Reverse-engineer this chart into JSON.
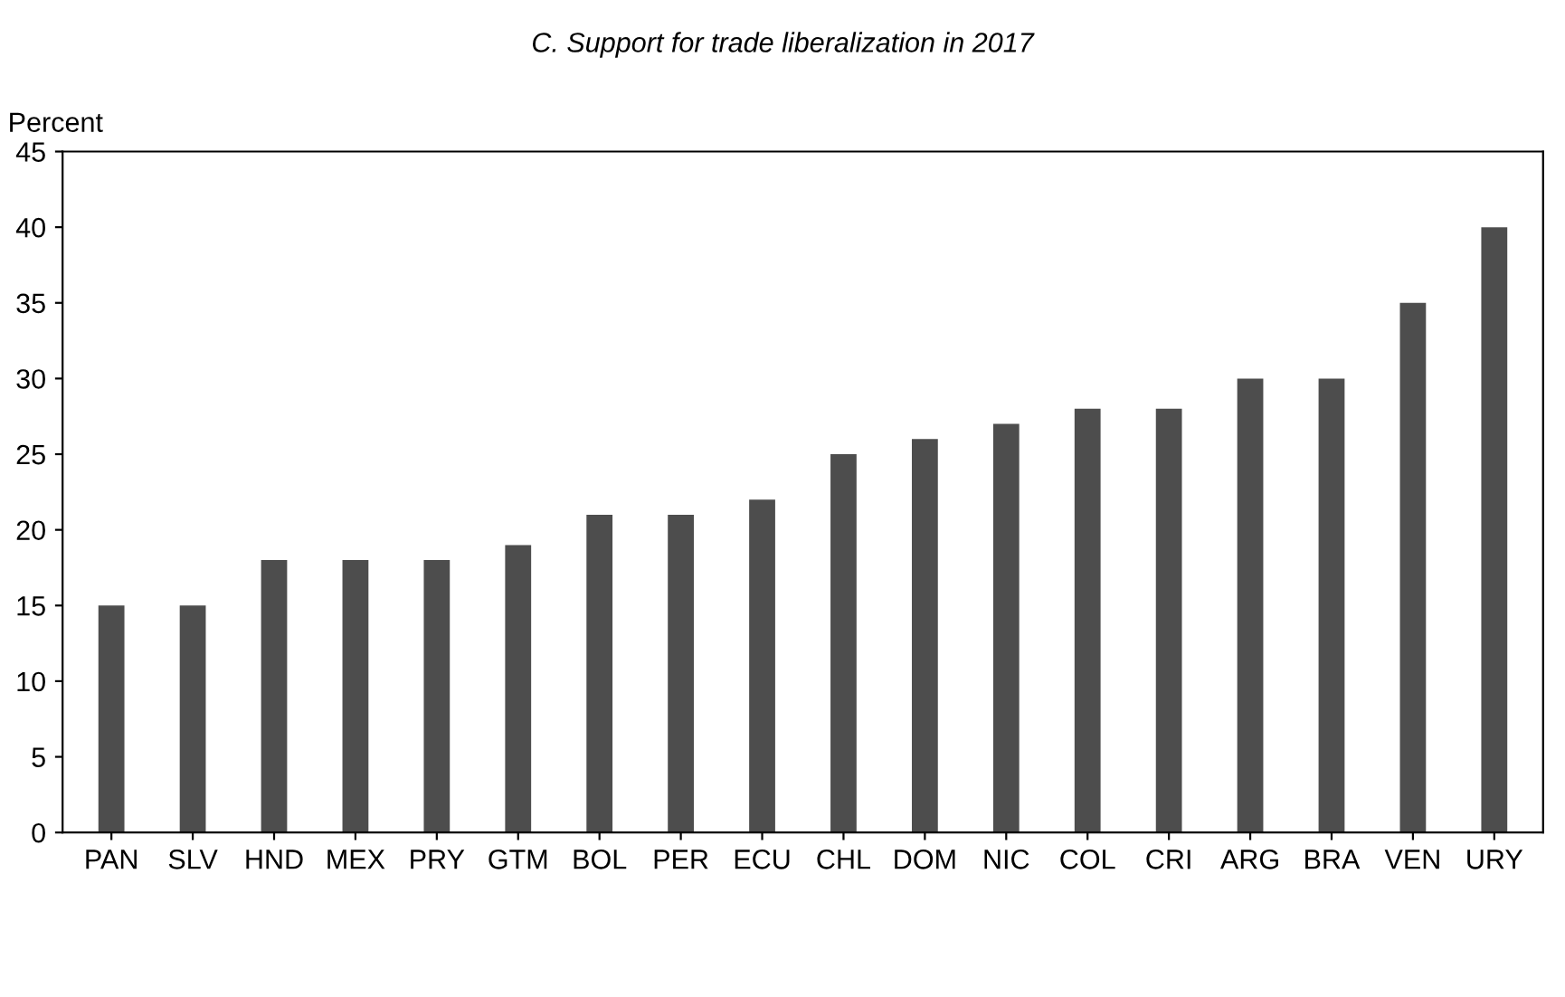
{
  "chart_data": {
    "type": "bar",
    "title": "C. Support for trade liberalization in 2017",
    "ylabel": "Percent",
    "categories": [
      "PAN",
      "SLV",
      "HND",
      "MEX",
      "PRY",
      "GTM",
      "BOL",
      "PER",
      "ECU",
      "CHL",
      "DOM",
      "NIC",
      "COL",
      "CRI",
      "ARG",
      "BRA",
      "VEN",
      "URY"
    ],
    "values": [
      15,
      15,
      18,
      18,
      18,
      19,
      21,
      21,
      22,
      25,
      26,
      27,
      28,
      28,
      30,
      30,
      35,
      40
    ],
    "color": "#4d4d4d",
    "ylim": [
      0,
      45
    ],
    "yticks": [
      0,
      5,
      10,
      15,
      20,
      25,
      30,
      35,
      40,
      45
    ],
    "grid": false,
    "legend": false
  }
}
